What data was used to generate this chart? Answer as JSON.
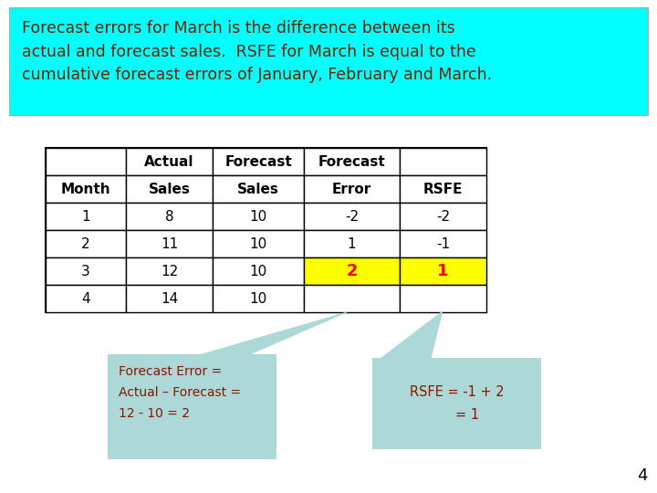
{
  "title_text": "Forecast errors for March is the difference between its\nactual and forecast sales.  RSFE for March is equal to the\ncumulative forecast errors of January, February and March.",
  "title_bg": "#00FFFF",
  "title_text_color": "#7B2000",
  "table_headers_row1": [
    "",
    "Actual",
    "Forecast",
    "Forecast",
    ""
  ],
  "table_headers_row2": [
    "Month",
    "Sales",
    "Sales",
    "Error",
    "RSFE"
  ],
  "table_data": [
    [
      "1",
      "8",
      "10",
      "-2",
      "-2"
    ],
    [
      "2",
      "11",
      "10",
      "1",
      "-1"
    ],
    [
      "3",
      "12",
      "10",
      "2",
      "1"
    ],
    [
      "4",
      "14",
      "10",
      "",
      ""
    ]
  ],
  "highlight_row": 2,
  "highlight_cols": [
    3,
    4
  ],
  "highlight_color": "#FFFF00",
  "highlight_text_color": "#FF0000",
  "callout_bg": "#ADD8D8",
  "callout_left_text": "Forecast Error =\nActual – Forecast =\n12 - 10 = 2",
  "callout_right_text": "RSFE = -1 + 2\n     = 1",
  "callout_text_color": "#8B1500",
  "page_number": "4",
  "bg_color": "#FFFFFF"
}
